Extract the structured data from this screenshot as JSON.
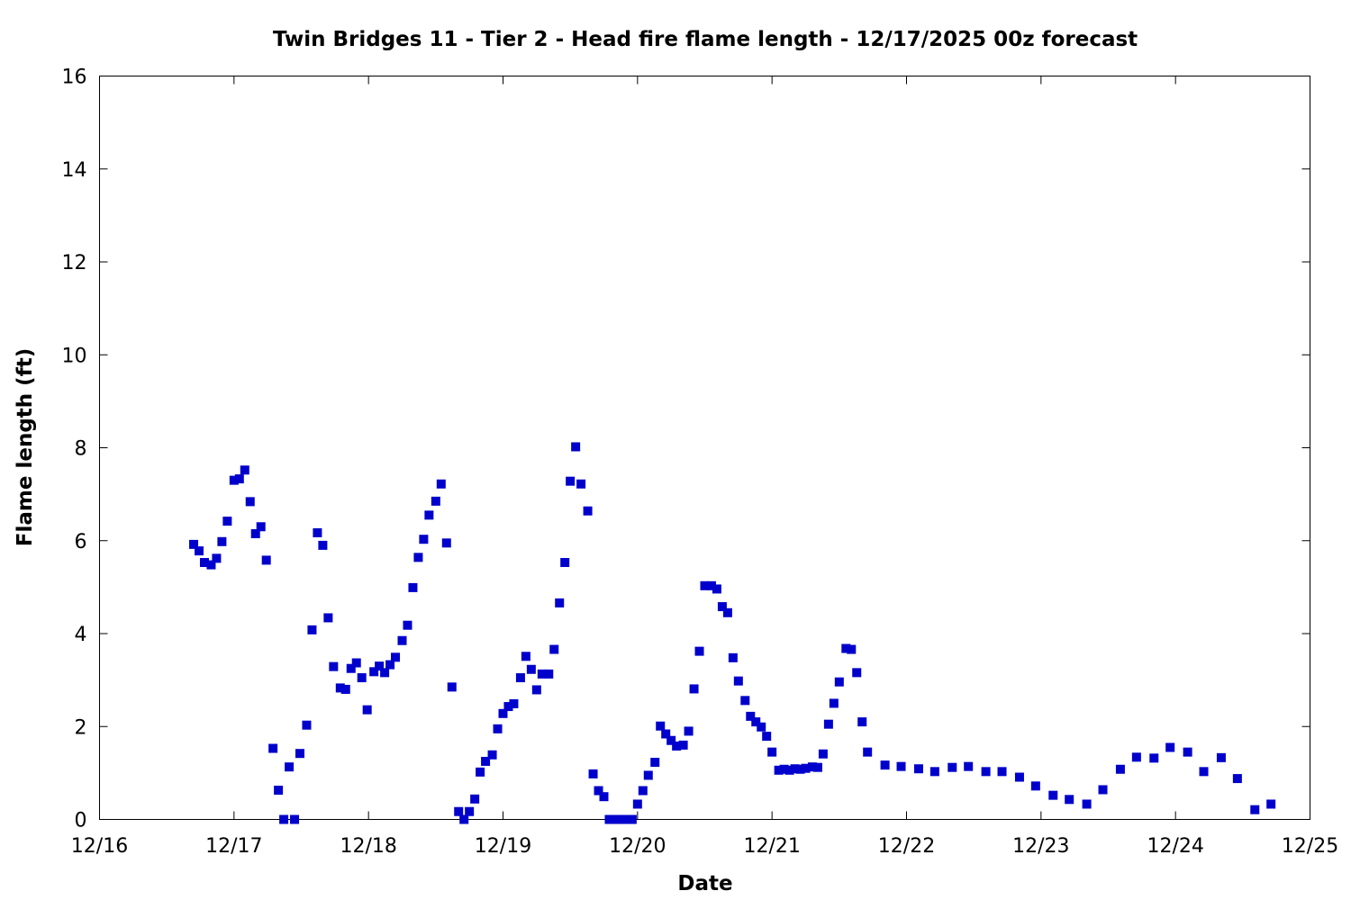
{
  "chart_data": {
    "type": "scatter",
    "title": "Twin Bridges 11 - Tier 2 - Head fire flame length - 12/17/2025 00z forecast",
    "xlabel": "Date",
    "ylabel": "Flame length (ft)",
    "x_ticks": [
      {
        "label": "12/16",
        "day": 16
      },
      {
        "label": "12/17",
        "day": 17
      },
      {
        "label": "12/18",
        "day": 18
      },
      {
        "label": "12/19",
        "day": 19
      },
      {
        "label": "12/20",
        "day": 20
      },
      {
        "label": "12/21",
        "day": 21
      },
      {
        "label": "12/22",
        "day": 22
      },
      {
        "label": "12/23",
        "day": 23
      },
      {
        "label": "12/24",
        "day": 24
      },
      {
        "label": "12/25",
        "day": 25
      }
    ],
    "y_ticks": [
      0,
      2,
      4,
      6,
      8,
      10,
      12,
      14,
      16
    ],
    "xlim": [
      16,
      25
    ],
    "ylim": [
      0,
      16
    ],
    "grid": false,
    "marker_color": "#0000cc",
    "series": [
      {
        "points": [
          [
            16.7,
            5.92
          ],
          [
            16.74,
            5.78
          ],
          [
            16.78,
            5.53
          ],
          [
            16.83,
            5.48
          ],
          [
            16.87,
            5.62
          ],
          [
            16.91,
            5.98
          ],
          [
            16.95,
            6.42
          ],
          [
            17.0,
            7.3
          ],
          [
            17.04,
            7.33
          ],
          [
            17.08,
            7.52
          ],
          [
            17.12,
            6.84
          ],
          [
            17.16,
            6.15
          ],
          [
            17.2,
            6.3
          ],
          [
            17.24,
            5.58
          ],
          [
            17.29,
            1.53
          ],
          [
            17.33,
            0.63
          ],
          [
            17.37,
            0.0
          ],
          [
            17.41,
            1.13
          ],
          [
            17.45,
            0.0
          ],
          [
            17.49,
            1.42
          ],
          [
            17.54,
            2.03
          ],
          [
            17.58,
            4.08
          ],
          [
            17.62,
            6.17
          ],
          [
            17.66,
            5.9
          ],
          [
            17.7,
            4.34
          ],
          [
            17.74,
            3.29
          ],
          [
            17.79,
            2.83
          ],
          [
            17.83,
            2.8
          ],
          [
            17.87,
            3.25
          ],
          [
            17.91,
            3.37
          ],
          [
            17.95,
            3.05
          ],
          [
            17.99,
            2.36
          ],
          [
            18.04,
            3.18
          ],
          [
            18.08,
            3.3
          ],
          [
            18.12,
            3.16
          ],
          [
            18.16,
            3.33
          ],
          [
            18.2,
            3.49
          ],
          [
            18.25,
            3.85
          ],
          [
            18.29,
            4.18
          ],
          [
            18.33,
            4.99
          ],
          [
            18.37,
            5.64
          ],
          [
            18.41,
            6.03
          ],
          [
            18.45,
            6.55
          ],
          [
            18.5,
            6.85
          ],
          [
            18.54,
            7.22
          ],
          [
            18.58,
            5.95
          ],
          [
            18.62,
            2.85
          ],
          [
            18.67,
            0.17
          ],
          [
            18.71,
            0.0
          ],
          [
            18.75,
            0.17
          ],
          [
            18.79,
            0.44
          ],
          [
            18.83,
            1.02
          ],
          [
            18.87,
            1.25
          ],
          [
            18.92,
            1.39
          ],
          [
            18.96,
            1.95
          ],
          [
            19.0,
            2.28
          ],
          [
            19.04,
            2.43
          ],
          [
            19.08,
            2.49
          ],
          [
            19.13,
            3.05
          ],
          [
            19.17,
            3.51
          ],
          [
            19.21,
            3.23
          ],
          [
            19.25,
            2.79
          ],
          [
            19.29,
            3.13
          ],
          [
            19.34,
            3.13
          ],
          [
            19.38,
            3.66
          ],
          [
            19.42,
            4.66
          ],
          [
            19.46,
            5.53
          ],
          [
            19.5,
            7.28
          ],
          [
            19.54,
            8.02
          ],
          [
            19.58,
            7.22
          ],
          [
            19.63,
            6.64
          ],
          [
            19.67,
            0.98
          ],
          [
            19.71,
            0.62
          ],
          [
            19.75,
            0.49
          ],
          [
            19.79,
            0.0
          ],
          [
            19.83,
            0.0
          ],
          [
            19.87,
            0.0
          ],
          [
            19.91,
            0.0
          ],
          [
            19.96,
            0.0
          ],
          [
            20.0,
            0.33
          ],
          [
            20.04,
            0.62
          ],
          [
            20.08,
            0.95
          ],
          [
            20.13,
            1.23
          ],
          [
            20.17,
            2.01
          ],
          [
            20.21,
            1.84
          ],
          [
            20.25,
            1.7
          ],
          [
            20.29,
            1.58
          ],
          [
            20.34,
            1.6
          ],
          [
            20.38,
            1.9
          ],
          [
            20.42,
            2.81
          ],
          [
            20.46,
            3.62
          ],
          [
            20.5,
            5.03
          ],
          [
            20.55,
            5.03
          ],
          [
            20.59,
            4.96
          ],
          [
            20.63,
            4.58
          ],
          [
            20.67,
            4.45
          ],
          [
            20.71,
            3.48
          ],
          [
            20.75,
            2.98
          ],
          [
            20.8,
            2.56
          ],
          [
            20.84,
            2.22
          ],
          [
            20.88,
            2.1
          ],
          [
            20.92,
            1.99
          ],
          [
            20.96,
            1.79
          ],
          [
            21.0,
            1.45
          ],
          [
            21.05,
            1.06
          ],
          [
            21.09,
            1.08
          ],
          [
            21.13,
            1.06
          ],
          [
            21.17,
            1.09
          ],
          [
            21.21,
            1.08
          ],
          [
            21.25,
            1.1
          ],
          [
            21.3,
            1.13
          ],
          [
            21.34,
            1.12
          ],
          [
            21.38,
            1.41
          ],
          [
            21.42,
            2.05
          ],
          [
            21.46,
            2.5
          ],
          [
            21.5,
            2.96
          ],
          [
            21.55,
            3.68
          ],
          [
            21.59,
            3.66
          ],
          [
            21.63,
            3.16
          ],
          [
            21.67,
            2.1
          ],
          [
            21.71,
            1.45
          ],
          [
            21.84,
            1.17
          ],
          [
            21.96,
            1.14
          ],
          [
            22.09,
            1.09
          ],
          [
            22.21,
            1.03
          ],
          [
            22.34,
            1.12
          ],
          [
            22.46,
            1.14
          ],
          [
            22.59,
            1.03
          ],
          [
            22.71,
            1.03
          ],
          [
            22.84,
            0.91
          ],
          [
            22.96,
            0.72
          ],
          [
            23.09,
            0.52
          ],
          [
            23.21,
            0.43
          ],
          [
            23.34,
            0.33
          ],
          [
            23.46,
            0.64
          ],
          [
            23.59,
            1.08
          ],
          [
            23.71,
            1.34
          ],
          [
            23.84,
            1.32
          ],
          [
            23.96,
            1.55
          ],
          [
            24.09,
            1.45
          ],
          [
            24.21,
            1.03
          ],
          [
            24.34,
            1.33
          ],
          [
            24.46,
            0.88
          ],
          [
            24.59,
            0.21
          ],
          [
            24.71,
            0.33
          ]
        ]
      }
    ]
  }
}
